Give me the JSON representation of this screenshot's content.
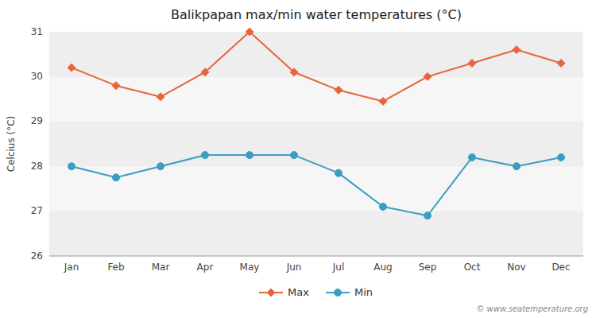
{
  "chart_data": {
    "type": "line",
    "title": "Balikpapan max/min water temperatures (°C)",
    "y_label": "Celcius (°C)",
    "annotations": [
      "© www.seatemperature.org"
    ],
    "categories": [
      "Jan",
      "Feb",
      "Mar",
      "Apr",
      "May",
      "Jun",
      "Jul",
      "Aug",
      "Sep",
      "Oct",
      "Nov",
      "Dec"
    ],
    "series": [
      {
        "name": "Max",
        "color": "#e8643c",
        "marker": "diamond",
        "values": [
          30.2,
          29.8,
          29.55,
          30.1,
          31.0,
          30.1,
          29.7,
          29.45,
          30.0,
          30.3,
          30.6,
          30.3
        ]
      },
      {
        "name": "Min",
        "color": "#3a9ec2",
        "marker": "circle",
        "values": [
          28.0,
          27.75,
          28.0,
          28.25,
          28.25,
          28.25,
          27.85,
          27.1,
          26.9,
          28.2,
          28.0,
          28.2
        ]
      }
    ],
    "ylim": [
      26,
      31
    ],
    "yticks": [
      26,
      27,
      28,
      29,
      30,
      31
    ],
    "grid": true,
    "legend": "bottom"
  }
}
